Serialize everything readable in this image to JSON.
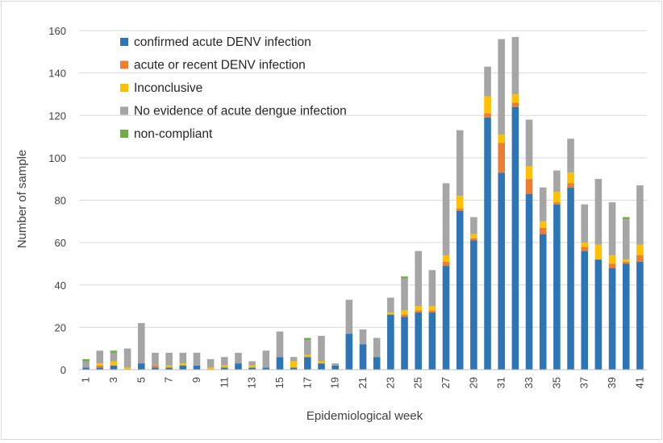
{
  "chart_data": {
    "type": "bar",
    "stacked": true,
    "title": "",
    "xlabel": "Epidemiological week",
    "ylabel": "Number of sample",
    "ylim": [
      0,
      160
    ],
    "yticks": [
      0,
      20,
      40,
      60,
      80,
      100,
      120,
      140,
      160
    ],
    "grid": true,
    "legend_position": "top-left",
    "categories": [
      1,
      2,
      3,
      4,
      5,
      6,
      7,
      8,
      9,
      10,
      11,
      12,
      13,
      14,
      15,
      16,
      17,
      18,
      19,
      20,
      21,
      22,
      23,
      24,
      25,
      26,
      27,
      28,
      29,
      30,
      31,
      32,
      33,
      34,
      35,
      36,
      37,
      38,
      39,
      40,
      41
    ],
    "x_tick_labels": [
      "1",
      "3",
      "5",
      "7",
      "9",
      "11",
      "13",
      "15",
      "17",
      "19",
      "21",
      "23",
      "25",
      "27",
      "29",
      "31",
      "33",
      "35",
      "37",
      "39",
      "41"
    ],
    "series": [
      {
        "name": "confirmed acute DENV infection",
        "color": "#2e75b6",
        "values": [
          1,
          1,
          2,
          0,
          3,
          1,
          1,
          2,
          2,
          0,
          1,
          3,
          1,
          1,
          6,
          1,
          6,
          3,
          2,
          17,
          12,
          6,
          26,
          25,
          27,
          27,
          49,
          75,
          61,
          119,
          93,
          124,
          83,
          64,
          78,
          86,
          56,
          52,
          48,
          50,
          51
        ]
      },
      {
        "name": "acute or recent DENV infection",
        "color": "#ed7d31",
        "values": [
          0,
          1,
          0,
          0,
          0,
          1,
          0,
          0,
          0,
          0,
          0,
          0,
          0,
          0,
          0,
          0,
          0,
          0,
          0,
          0,
          0,
          0,
          0,
          1,
          1,
          1,
          2,
          1,
          1,
          2,
          14,
          2,
          7,
          3,
          1,
          2,
          2,
          0,
          2,
          1,
          3
        ]
      },
      {
        "name": "Inconclusive",
        "color": "#ffc000",
        "values": [
          0,
          1,
          2,
          1,
          0,
          0,
          1,
          1,
          0,
          1,
          1,
          0,
          1,
          0,
          0,
          3,
          1,
          1,
          0,
          0,
          0,
          0,
          1,
          2,
          2,
          2,
          3,
          6,
          2,
          8,
          4,
          4,
          6,
          3,
          5,
          5,
          2,
          7,
          4,
          1,
          5
        ]
      },
      {
        "name": "No evidence of acute dengue infection",
        "color": "#a5a5a5",
        "values": [
          3,
          6,
          4,
          9,
          19,
          6,
          6,
          5,
          6,
          4,
          4,
          5,
          2,
          8,
          12,
          2,
          7,
          12,
          1,
          16,
          7,
          9,
          7,
          15,
          26,
          17,
          34,
          31,
          8,
          14,
          45,
          27,
          22,
          16,
          10,
          16,
          18,
          31,
          25,
          19,
          28
        ]
      },
      {
        "name": "non-compliant",
        "color": "#70ad47",
        "values": [
          1,
          0,
          1,
          0,
          0,
          0,
          0,
          0,
          0,
          0,
          0,
          0,
          0,
          0,
          0,
          0,
          1,
          0,
          0,
          0,
          0,
          0,
          0,
          1,
          0,
          0,
          0,
          0,
          0,
          0,
          0,
          0,
          0,
          0,
          0,
          0,
          0,
          0,
          0,
          1,
          0
        ]
      }
    ]
  }
}
